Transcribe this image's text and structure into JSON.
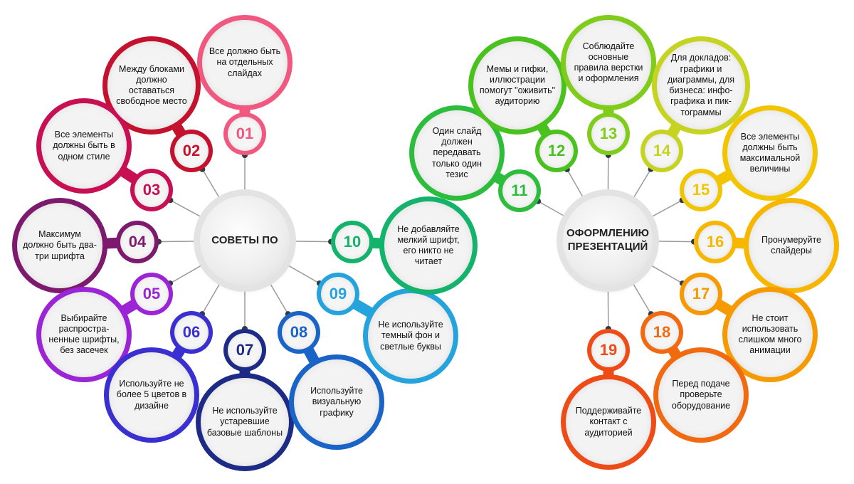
{
  "hubs": [
    {
      "id": "left",
      "label": "СОВЕТЫ ПО"
    },
    {
      "id": "right",
      "label": "ОФОРМЛЕНИЮ ПРЕЗЕНТАЦИЙ"
    }
  ],
  "tips": [
    {
      "number": "01",
      "text": "Все должно быть на отдельных слайдах",
      "color": "#f0587f"
    },
    {
      "number": "02",
      "text": "Между блоками должно оставаться свободное место",
      "color": "#c4112e"
    },
    {
      "number": "03",
      "text": "Все элементы должны быть в одном стиле",
      "color": "#c80f53"
    },
    {
      "number": "04",
      "text": "Максимум должно быть два-три шрифта",
      "color": "#7e1a6e"
    },
    {
      "number": "05",
      "text": "Выбирайте распростра-ненные шрифты, без засечек",
      "color": "#9b24d6"
    },
    {
      "number": "06",
      "text": "Используйте не более 5 цветов в дизайне",
      "color": "#3a2fd1"
    },
    {
      "number": "07",
      "text": "Не используйте устаревшие базовые шаблоны",
      "color": "#1d2b86"
    },
    {
      "number": "08",
      "text": "Используйте визуальную графику",
      "color": "#1a64c8"
    },
    {
      "number": "09",
      "text": "Не используйте темный фон и светлые буквы",
      "color": "#25a3dc"
    },
    {
      "number": "10",
      "text": "Не добавляйте мелкий шрифт, его никто не читает",
      "color": "#14b36b"
    },
    {
      "number": "11",
      "text": "Один слайд должен передавать только один тезис",
      "color": "#2bbd3b"
    },
    {
      "number": "12",
      "text": "Мемы и гифки, иллюстрации помогут \"оживить\" аудиторию",
      "color": "#4ac21e"
    },
    {
      "number": "13",
      "text": "Соблюдайте основные правила верстки и оформления",
      "color": "#7fcc1a"
    },
    {
      "number": "14",
      "text": "Для докладов: графики и диаграммы, для бизнеса: инфо-графика и пик-тограммы",
      "color": "#c7d321"
    },
    {
      "number": "15",
      "text": "Все элементы должны быть максимальной величины",
      "color": "#f2c500"
    },
    {
      "number": "16",
      "text": "Пронумеруйте слайдеры",
      "color": "#f7b600"
    },
    {
      "number": "17",
      "text": "Не стоит использовать слишком много анимации",
      "color": "#f59a00"
    },
    {
      "number": "18",
      "text": "Перед подаче проверьте оборудование",
      "color": "#f26a10"
    },
    {
      "number": "19",
      "text": "Поддерживайте контакт с аудиторией",
      "color": "#ef4b17"
    }
  ]
}
